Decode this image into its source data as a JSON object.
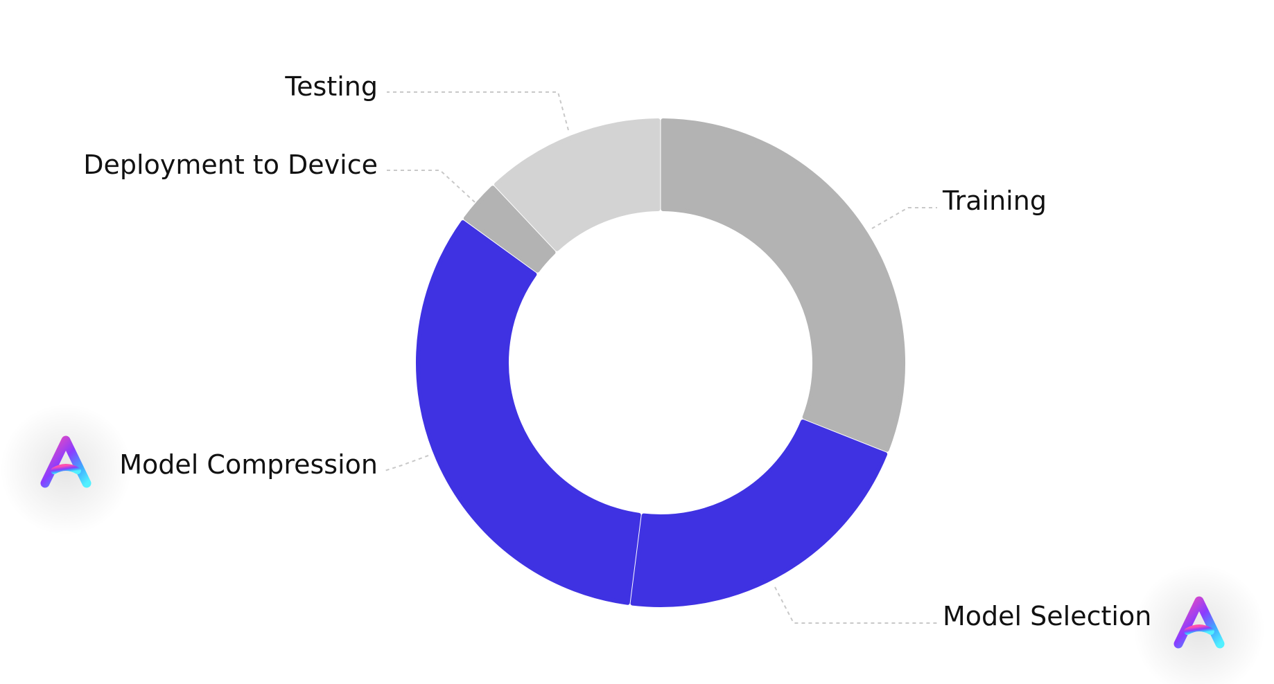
{
  "chart_data": {
    "type": "pie",
    "variant": "donut",
    "slices": [
      {
        "label": "Training",
        "value": 31,
        "color": "#b3b3b3",
        "logo": false
      },
      {
        "label": "Model Selection",
        "value": 21,
        "color": "#3f32e2",
        "logo": true
      },
      {
        "label": "Model Compression",
        "value": 33,
        "color": "#3f32e2",
        "logo": true
      },
      {
        "label": "Deployment to Device",
        "value": 3,
        "color": "#b3b3b3",
        "logo": false
      },
      {
        "label": "Testing",
        "value": 12,
        "color": "#d3d3d3",
        "logo": false
      }
    ],
    "legend": "none",
    "leader_line_color": "#c8c8c8"
  }
}
